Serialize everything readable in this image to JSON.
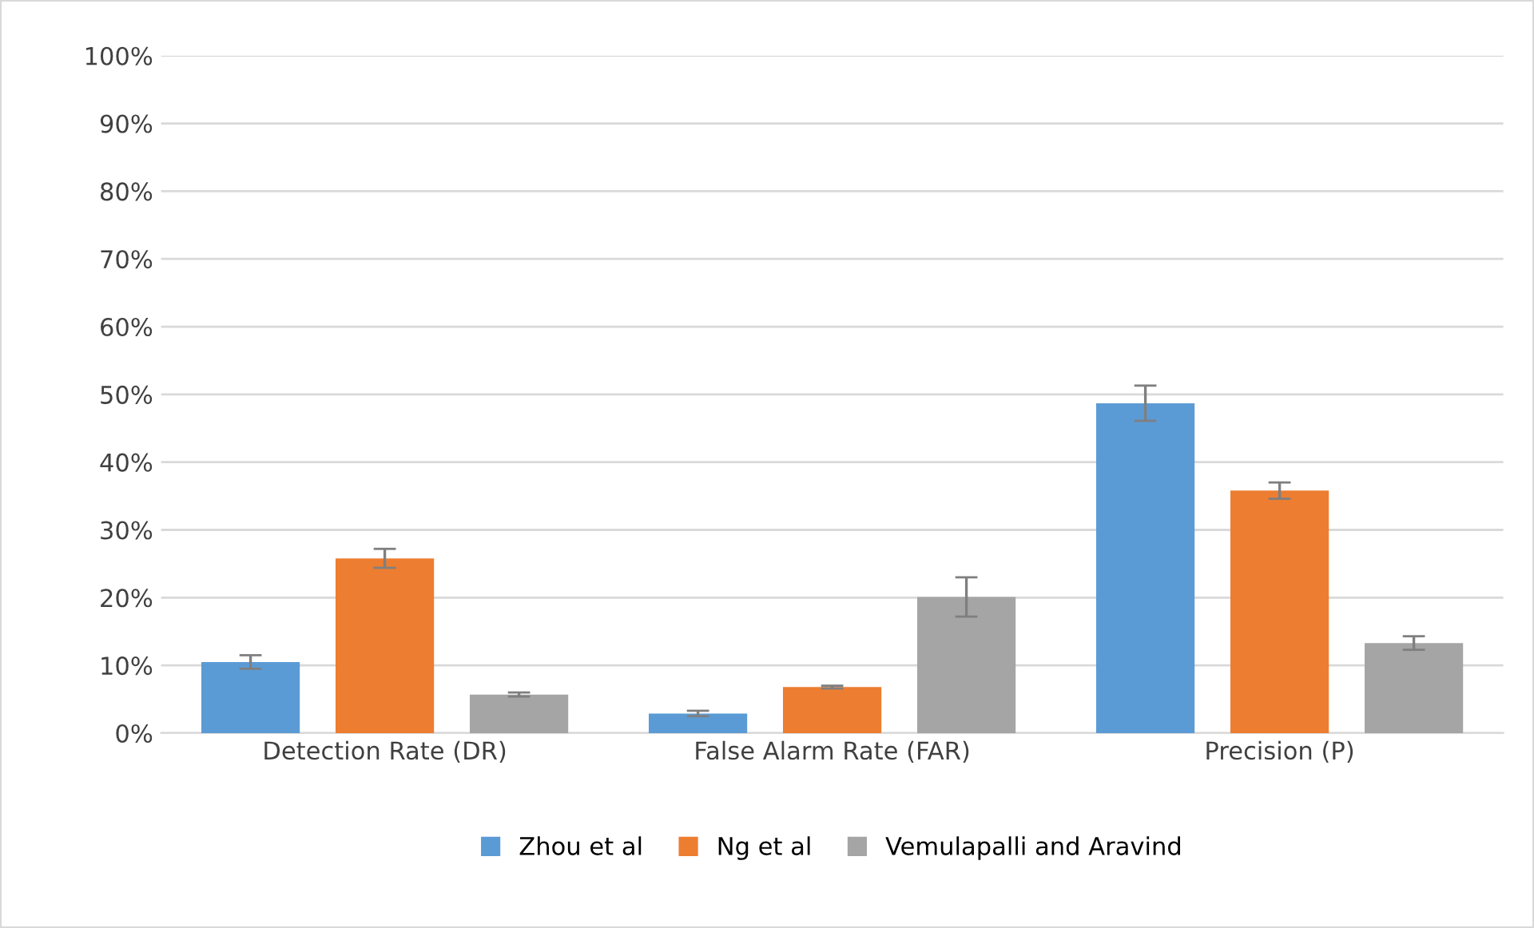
{
  "chart_data": {
    "type": "bar",
    "categories": [
      "Detection Rate (DR)",
      "False Alarm Rate (FAR)",
      "Precision (P)"
    ],
    "series": [
      {
        "name": "Zhou et al",
        "color": "#5b9bd5",
        "values": [
          10.5,
          2.9,
          48.7
        ],
        "errors": [
          1.0,
          0.4,
          2.6
        ]
      },
      {
        "name": "Ng et al",
        "color": "#ed7d31",
        "values": [
          25.8,
          6.8,
          35.8
        ],
        "errors": [
          1.4,
          0.2,
          1.2
        ]
      },
      {
        "name": "Vemulapalli and Aravind",
        "color": "#a5a5a5",
        "values": [
          5.7,
          20.1,
          13.3
        ],
        "errors": [
          0.3,
          2.9,
          1.0
        ]
      }
    ],
    "ylim": [
      0,
      100
    ],
    "yticks": [
      {
        "value": 0,
        "label": "0%"
      },
      {
        "value": 10,
        "label": "10%"
      },
      {
        "value": 20,
        "label": "20%"
      },
      {
        "value": 30,
        "label": "30%"
      },
      {
        "value": 40,
        "label": "40%"
      },
      {
        "value": 50,
        "label": "50%"
      },
      {
        "value": 60,
        "label": "60%"
      },
      {
        "value": 70,
        "label": "70%"
      },
      {
        "value": 80,
        "label": "80%"
      },
      {
        "value": 90,
        "label": "90%"
      },
      {
        "value": 100,
        "label": "100%"
      }
    ],
    "grid": "y",
    "legend": "bottom"
  }
}
